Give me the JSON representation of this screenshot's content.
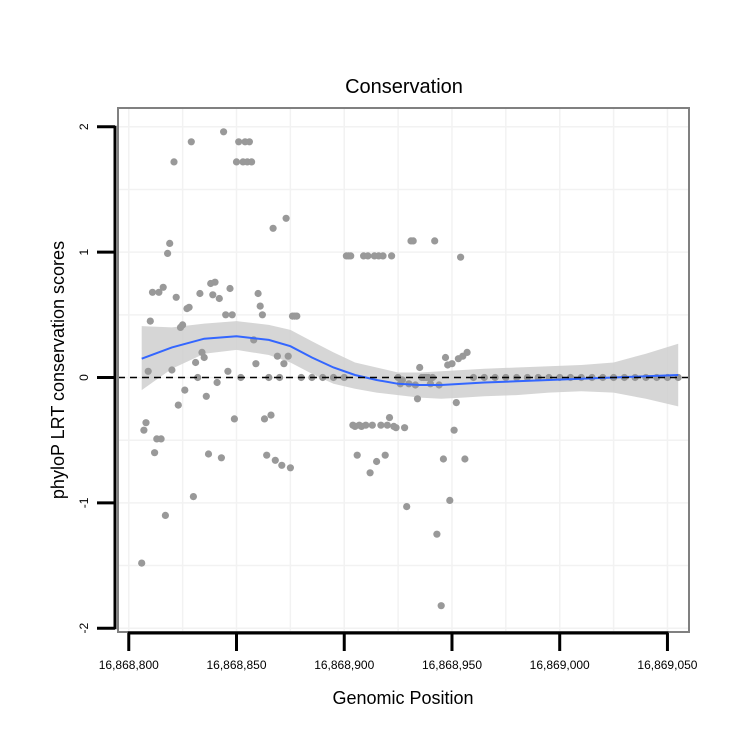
{
  "chart_data": {
    "type": "scatter",
    "title": "Conservation",
    "xlabel": "Genomic Position",
    "ylabel": "phyloP LRT conservation scores",
    "xlim": [
      16868795,
      16869060
    ],
    "ylim": [
      -2.03,
      2.15
    ],
    "x_ticks": [
      16868800,
      16868850,
      16868900,
      16868950,
      16869000,
      16869050
    ],
    "x_tick_labels": [
      "16,868,800",
      "16,868,850",
      "16,868,900",
      "16,868,950",
      "16,869,000",
      "16,869,050"
    ],
    "y_ticks": [
      -2,
      -1,
      0,
      1,
      2
    ],
    "y_tick_labels": [
      "-2",
      "-1",
      "0",
      "1",
      "2"
    ],
    "reference_line": {
      "y": 0,
      "style": "dashed"
    },
    "colors": {
      "points": "#999999",
      "smooth_line": "#3366ff",
      "confidence_band": "#cccccc",
      "panel_border": "#808080",
      "grid": "#f2f2f2",
      "reference_line": "#000000"
    },
    "points": [
      {
        "x": 16868806,
        "y": -1.48
      },
      {
        "x": 16868807,
        "y": -0.42
      },
      {
        "x": 16868808,
        "y": -0.36
      },
      {
        "x": 16868809,
        "y": 0.05
      },
      {
        "x": 16868810,
        "y": 0.45
      },
      {
        "x": 16868811,
        "y": 0.68
      },
      {
        "x": 16868812,
        "y": -0.6
      },
      {
        "x": 16868813,
        "y": -0.49
      },
      {
        "x": 16868814,
        "y": 0.68
      },
      {
        "x": 16868815,
        "y": -0.49
      },
      {
        "x": 16868816,
        "y": 0.72
      },
      {
        "x": 16868817,
        "y": -1.1
      },
      {
        "x": 16868818,
        "y": 0.99
      },
      {
        "x": 16868819,
        "y": 1.07
      },
      {
        "x": 16868820,
        "y": 0.06
      },
      {
        "x": 16868821,
        "y": 1.72
      },
      {
        "x": 16868822,
        "y": 0.64
      },
      {
        "x": 16868823,
        "y": -0.22
      },
      {
        "x": 16868824,
        "y": 0.4
      },
      {
        "x": 16868825,
        "y": 0.42
      },
      {
        "x": 16868826,
        "y": -0.1
      },
      {
        "x": 16868827,
        "y": 0.55
      },
      {
        "x": 16868828,
        "y": 0.56
      },
      {
        "x": 16868829,
        "y": 1.88
      },
      {
        "x": 16868830,
        "y": -0.95
      },
      {
        "x": 16868831,
        "y": 0.12
      },
      {
        "x": 16868832,
        "y": 0.0
      },
      {
        "x": 16868833,
        "y": 0.67
      },
      {
        "x": 16868834,
        "y": 0.2
      },
      {
        "x": 16868835,
        "y": 0.16
      },
      {
        "x": 16868836,
        "y": -0.15
      },
      {
        "x": 16868837,
        "y": -0.61
      },
      {
        "x": 16868838,
        "y": 0.75
      },
      {
        "x": 16868839,
        "y": 0.66
      },
      {
        "x": 16868840,
        "y": 0.76
      },
      {
        "x": 16868841,
        "y": -0.04
      },
      {
        "x": 16868842,
        "y": 0.63
      },
      {
        "x": 16868843,
        "y": -0.64
      },
      {
        "x": 16868844,
        "y": 1.96
      },
      {
        "x": 16868845,
        "y": 0.5
      },
      {
        "x": 16868846,
        "y": 0.05
      },
      {
        "x": 16868847,
        "y": 0.71
      },
      {
        "x": 16868848,
        "y": 0.5
      },
      {
        "x": 16868849,
        "y": -0.33
      },
      {
        "x": 16868850,
        "y": 1.72
      },
      {
        "x": 16868851,
        "y": 1.88
      },
      {
        "x": 16868852,
        "y": 0.0
      },
      {
        "x": 16868853,
        "y": 1.72
      },
      {
        "x": 16868854,
        "y": 1.88
      },
      {
        "x": 16868855,
        "y": 1.72
      },
      {
        "x": 16868856,
        "y": 1.88
      },
      {
        "x": 16868857,
        "y": 1.72
      },
      {
        "x": 16868858,
        "y": 0.3
      },
      {
        "x": 16868859,
        "y": 0.11
      },
      {
        "x": 16868860,
        "y": 0.67
      },
      {
        "x": 16868861,
        "y": 0.57
      },
      {
        "x": 16868862,
        "y": 0.5
      },
      {
        "x": 16868863,
        "y": -0.33
      },
      {
        "x": 16868864,
        "y": -0.62
      },
      {
        "x": 16868865,
        "y": 0.0
      },
      {
        "x": 16868866,
        "y": -0.3
      },
      {
        "x": 16868867,
        "y": 1.19
      },
      {
        "x": 16868868,
        "y": -0.66
      },
      {
        "x": 16868869,
        "y": 0.17
      },
      {
        "x": 16868870,
        "y": 0.0
      },
      {
        "x": 16868871,
        "y": -0.7
      },
      {
        "x": 16868872,
        "y": 0.11
      },
      {
        "x": 16868873,
        "y": 1.27
      },
      {
        "x": 16868874,
        "y": 0.17
      },
      {
        "x": 16868875,
        "y": -0.72
      },
      {
        "x": 16868876,
        "y": 0.49
      },
      {
        "x": 16868877,
        "y": 0.49
      },
      {
        "x": 16868878,
        "y": 0.49
      },
      {
        "x": 16868880,
        "y": 0.0
      },
      {
        "x": 16868885,
        "y": 0.0
      },
      {
        "x": 16868890,
        "y": 0.0
      },
      {
        "x": 16868895,
        "y": 0.0
      },
      {
        "x": 16868900,
        "y": 0.0
      },
      {
        "x": 16868901,
        "y": 0.97
      },
      {
        "x": 16868902,
        "y": 0.97
      },
      {
        "x": 16868903,
        "y": 0.97
      },
      {
        "x": 16868904,
        "y": -0.38
      },
      {
        "x": 16868905,
        "y": -0.39
      },
      {
        "x": 16868906,
        "y": -0.62
      },
      {
        "x": 16868907,
        "y": -0.38
      },
      {
        "x": 16868908,
        "y": -0.39
      },
      {
        "x": 16868909,
        "y": 0.97
      },
      {
        "x": 16868910,
        "y": -0.38
      },
      {
        "x": 16868911,
        "y": 0.97
      },
      {
        "x": 16868912,
        "y": -0.76
      },
      {
        "x": 16868913,
        "y": -0.38
      },
      {
        "x": 16868914,
        "y": 0.97
      },
      {
        "x": 16868915,
        "y": -0.67
      },
      {
        "x": 16868916,
        "y": 0.97
      },
      {
        "x": 16868917,
        "y": -0.38
      },
      {
        "x": 16868918,
        "y": 0.97
      },
      {
        "x": 16868919,
        "y": -0.62
      },
      {
        "x": 16868920,
        "y": -0.38
      },
      {
        "x": 16868921,
        "y": -0.32
      },
      {
        "x": 16868922,
        "y": 0.97
      },
      {
        "x": 16868923,
        "y": -0.39
      },
      {
        "x": 16868924,
        "y": -0.4
      },
      {
        "x": 16868925,
        "y": 0.0
      },
      {
        "x": 16868926,
        "y": -0.05
      },
      {
        "x": 16868927,
        "y": -0.02
      },
      {
        "x": 16868928,
        "y": -0.4
      },
      {
        "x": 16868929,
        "y": -1.03
      },
      {
        "x": 16868930,
        "y": -0.05
      },
      {
        "x": 16868931,
        "y": 1.09
      },
      {
        "x": 16868932,
        "y": 1.09
      },
      {
        "x": 16868933,
        "y": -0.06
      },
      {
        "x": 16868934,
        "y": -0.17
      },
      {
        "x": 16868935,
        "y": 0.08
      },
      {
        "x": 16868936,
        "y": 0.0
      },
      {
        "x": 16868937,
        "y": 0.0
      },
      {
        "x": 16868938,
        "y": 0.0
      },
      {
        "x": 16868939,
        "y": 0.0
      },
      {
        "x": 16868940,
        "y": -0.05
      },
      {
        "x": 16868941,
        "y": 0.0
      },
      {
        "x": 16868942,
        "y": 1.09
      },
      {
        "x": 16868943,
        "y": -1.25
      },
      {
        "x": 16868944,
        "y": -0.06
      },
      {
        "x": 16868945,
        "y": -1.82
      },
      {
        "x": 16868946,
        "y": -0.65
      },
      {
        "x": 16868947,
        "y": 0.16
      },
      {
        "x": 16868948,
        "y": 0.1
      },
      {
        "x": 16868949,
        "y": -0.98
      },
      {
        "x": 16868950,
        "y": 0.11
      },
      {
        "x": 16868951,
        "y": -0.42
      },
      {
        "x": 16868952,
        "y": -0.2
      },
      {
        "x": 16868953,
        "y": 0.15
      },
      {
        "x": 16868954,
        "y": 0.96
      },
      {
        "x": 16868955,
        "y": 0.17
      },
      {
        "x": 16868956,
        "y": -0.65
      },
      {
        "x": 16868957,
        "y": 0.2
      },
      {
        "x": 16868960,
        "y": 0.0
      },
      {
        "x": 16868965,
        "y": 0.0
      },
      {
        "x": 16868970,
        "y": 0.0
      },
      {
        "x": 16868975,
        "y": 0.0
      },
      {
        "x": 16868980,
        "y": 0.0
      },
      {
        "x": 16868985,
        "y": 0.0
      },
      {
        "x": 16868990,
        "y": 0.0
      },
      {
        "x": 16868995,
        "y": 0.0
      },
      {
        "x": 16869000,
        "y": 0.0
      },
      {
        "x": 16869005,
        "y": 0.0
      },
      {
        "x": 16869010,
        "y": 0.0
      },
      {
        "x": 16869015,
        "y": 0.0
      },
      {
        "x": 16869020,
        "y": 0.0
      },
      {
        "x": 16869025,
        "y": 0.0
      },
      {
        "x": 16869030,
        "y": 0.0
      },
      {
        "x": 16869035,
        "y": 0.0
      },
      {
        "x": 16869040,
        "y": 0.0
      },
      {
        "x": 16869045,
        "y": 0.0
      },
      {
        "x": 16869050,
        "y": 0.0
      },
      {
        "x": 16869055,
        "y": 0.0
      }
    ],
    "smooth": {
      "x": [
        16868806,
        16868820,
        16868835,
        16868850,
        16868865,
        16868875,
        16868885,
        16868895,
        16868905,
        16868915,
        16868925,
        16868935,
        16868945,
        16868955,
        16868965,
        16868980,
        16868995,
        16869010,
        16869025,
        16869040,
        16869055
      ],
      "y": [
        0.15,
        0.24,
        0.31,
        0.33,
        0.3,
        0.25,
        0.16,
        0.08,
        0.02,
        -0.02,
        -0.05,
        -0.06,
        -0.06,
        -0.05,
        -0.04,
        -0.03,
        -0.02,
        -0.01,
        0.0,
        0.01,
        0.02
      ],
      "lower": [
        -0.1,
        0.07,
        0.19,
        0.22,
        0.18,
        0.12,
        0.03,
        -0.05,
        -0.09,
        -0.12,
        -0.14,
        -0.16,
        -0.17,
        -0.16,
        -0.15,
        -0.14,
        -0.12,
        -0.11,
        -0.12,
        -0.17,
        -0.23
      ],
      "upper": [
        0.41,
        0.4,
        0.43,
        0.45,
        0.42,
        0.38,
        0.29,
        0.2,
        0.12,
        0.08,
        0.04,
        0.04,
        0.05,
        0.06,
        0.07,
        0.08,
        0.09,
        0.1,
        0.12,
        0.19,
        0.27
      ]
    }
  }
}
